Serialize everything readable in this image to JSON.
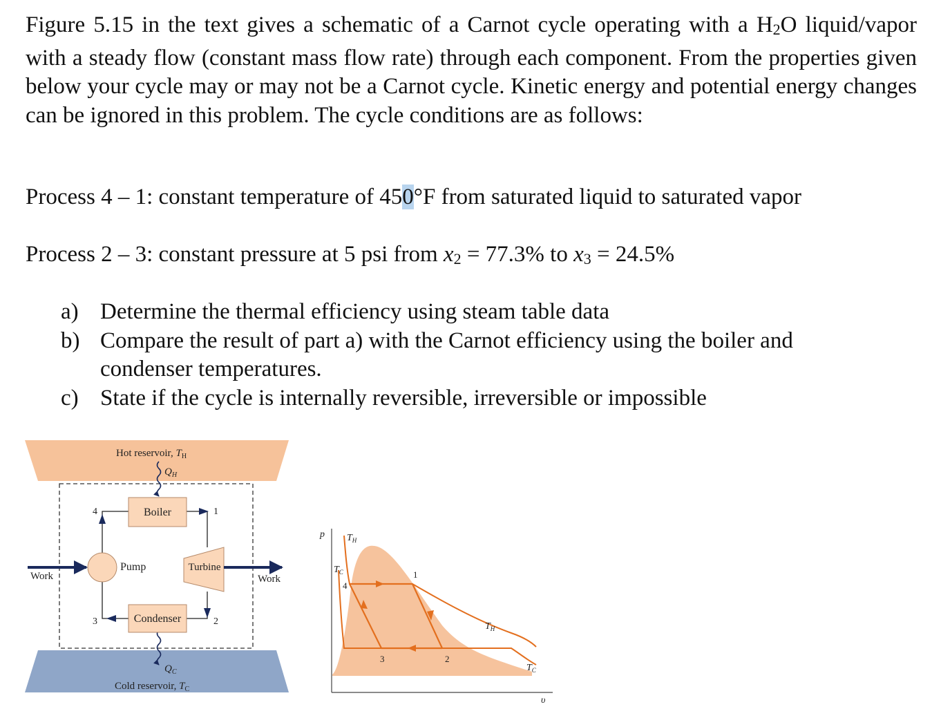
{
  "intro": {
    "before_sub": "Figure 5.15 in the text gives a schematic of a Carnot cycle operating with a H",
    "sub": "2",
    "after_sub": "O liquid/vapor with a steady flow (constant mass flow rate) through each component. From the properties given below your cycle may or may not be a Carnot cycle. Kinetic energy and potential energy changes can be ignored in this problem. The cycle conditions are as follows:"
  },
  "process41": {
    "pre": "Process 4 – 1: constant temperature of 45",
    "hl": "0",
    "post": "°F from saturated liquid to saturated vapor"
  },
  "process23": {
    "pre": "Process 2 – 3: constant pressure at 5 psi from ",
    "x": "x",
    "sub2": "2",
    "mid": " = 77.3% to ",
    "sub3": "3",
    "end": " = 24.5%"
  },
  "questions": [
    {
      "marker": "a)",
      "text": "Determine the thermal efficiency using steam table data"
    },
    {
      "marker": "b)",
      "text": "Compare the result of part a) with the Carnot efficiency using the boiler and condenser temperatures."
    },
    {
      "marker": "c)",
      "text": "State if the cycle is internally reversible, irreversible or impossible"
    }
  ],
  "schematic": {
    "hot_label": "Hot reservoir, ",
    "T": "T",
    "H": "H",
    "C": "C",
    "Q": "Q",
    "cold_label": "Cold reservoir, ",
    "boiler": "Boiler",
    "pump": "Pump",
    "turbine": "Turbine",
    "condenser": "Condenser",
    "work": "Work",
    "state1": "1",
    "state2": "2",
    "state3": "3",
    "state4": "4"
  },
  "pv": {
    "p": "p",
    "v": "υ",
    "T": "T",
    "H": "H",
    "C": "C",
    "s1": "1",
    "s2": "2",
    "s3": "3",
    "s4": "4"
  },
  "colors": {
    "reservoir_hot": "#f6c29a",
    "reservoir_cold": "#8fa6c8",
    "component": "#fbd7b9",
    "cycle_fill": "#f5b88c",
    "orange_line": "#e36f1e",
    "arrow_navy": "#1a2a5c",
    "highlight": "#b8d4ee"
  }
}
